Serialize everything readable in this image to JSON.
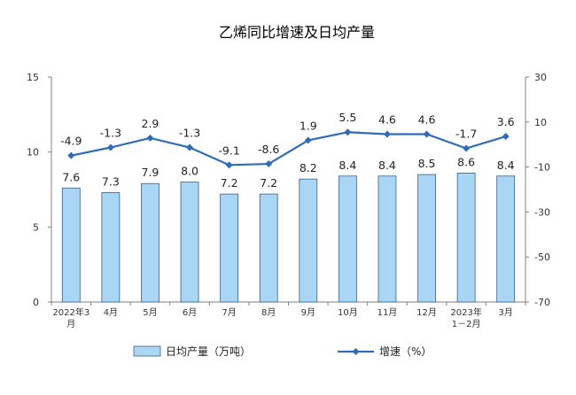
{
  "chart_data": {
    "type": "bar",
    "title": "乙烯同比增速及日均产量",
    "categories": [
      [
        "2022年3",
        "月"
      ],
      [
        "4月"
      ],
      [
        "5月"
      ],
      [
        "6月"
      ],
      [
        "7月"
      ],
      [
        "8月"
      ],
      [
        "9月"
      ],
      [
        "10月"
      ],
      [
        "11月"
      ],
      [
        "12月"
      ],
      [
        "2023年",
        "1－2月"
      ],
      [
        "3月"
      ]
    ],
    "left_axis": {
      "min": 0,
      "max": 15,
      "ticks": [
        "0",
        "5",
        "10",
        "15"
      ]
    },
    "right_axis": {
      "min": -70,
      "max": 30,
      "ticks": [
        "-70",
        "-50",
        "-30",
        "-10",
        "10",
        "30"
      ]
    },
    "series": [
      {
        "name": "日均产量（万吨）",
        "type": "bar",
        "axis": "left",
        "color": "#a9d6f5",
        "values": [
          7.6,
          7.3,
          7.9,
          8.0,
          7.2,
          7.2,
          8.2,
          8.4,
          8.4,
          8.5,
          8.6,
          8.4
        ],
        "labels": [
          "7.6",
          "7.3",
          "7.9",
          "8.0",
          "7.2",
          "7.2",
          "8.2",
          "8.4",
          "8.4",
          "8.5",
          "8.6",
          "8.4"
        ]
      },
      {
        "name": "增速（%）",
        "type": "line",
        "axis": "right",
        "color": "#2e6cb5",
        "values": [
          -4.9,
          -1.3,
          2.9,
          -1.3,
          -9.1,
          -8.6,
          1.9,
          5.5,
          4.6,
          4.6,
          -1.7,
          3.6
        ],
        "labels": [
          "-4.9",
          "-1.3",
          "2.9",
          "-1.3",
          "-9.1",
          "-8.6",
          "1.9",
          "5.5",
          "4.6",
          "4.6",
          "-1.7",
          "3.6"
        ]
      }
    ],
    "legend": "bottom"
  }
}
